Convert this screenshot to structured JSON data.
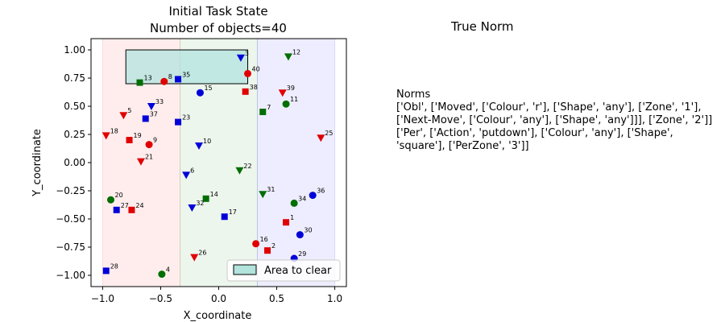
{
  "chart_data": {
    "type": "scatter",
    "title_line1": "Initial Task State",
    "title_line2": "Number of objects=40",
    "xlabel": "X_coordinate",
    "ylabel": "Y_coordinate",
    "xlim": [
      -1.1,
      1.1
    ],
    "ylim": [
      -1.1,
      1.1
    ],
    "xticks": [
      -1.0,
      -0.5,
      0.0,
      0.5,
      1.0
    ],
    "yticks": [
      -1.0,
      -0.75,
      -0.5,
      -0.25,
      0.0,
      0.25,
      0.5,
      0.75,
      1.0
    ],
    "xtick_labels": [
      "−1.0",
      "−0.5",
      "0.0",
      "0.5",
      "1.0"
    ],
    "ytick_labels": [
      "−1.00",
      "−0.75",
      "−0.50",
      "−0.25",
      "0.00",
      "0.25",
      "0.50",
      "0.75",
      "1.00"
    ],
    "zones": [
      {
        "x0": -1.0,
        "x1": -0.333,
        "color": "#ff0000"
      },
      {
        "x0": -0.333,
        "x1": 0.333,
        "color": "#008000"
      },
      {
        "x0": 0.333,
        "x1": 1.0,
        "color": "#0000ff"
      }
    ],
    "clear_area": {
      "x0": -0.8,
      "x1": 0.25,
      "y0": 0.7,
      "y1": 1.0,
      "color": "#b2e3dd"
    },
    "legend": {
      "label": "Area to clear",
      "loc": "lower right"
    },
    "colors": {
      "r": "#e00000",
      "g": "#006e00",
      "b": "#0000d8"
    },
    "points": [
      {
        "id": "1",
        "x": 0.58,
        "y": -0.53,
        "shape": "square",
        "color": "r"
      },
      {
        "id": "2",
        "x": 0.42,
        "y": -0.78,
        "shape": "square",
        "color": "r"
      },
      {
        "id": "3",
        "x": 0.19,
        "y": 0.93,
        "shape": "triangle",
        "color": "b"
      },
      {
        "id": "4",
        "x": -0.49,
        "y": -0.99,
        "shape": "circle",
        "color": "g"
      },
      {
        "id": "5",
        "x": -0.82,
        "y": 0.42,
        "shape": "triangle",
        "color": "r"
      },
      {
        "id": "6",
        "x": -0.28,
        "y": -0.11,
        "shape": "triangle",
        "color": "b"
      },
      {
        "id": "7",
        "x": 0.38,
        "y": 0.45,
        "shape": "square",
        "color": "g"
      },
      {
        "id": "8",
        "x": -0.47,
        "y": 0.72,
        "shape": "circle",
        "color": "r"
      },
      {
        "id": "9",
        "x": -0.6,
        "y": 0.16,
        "shape": "circle",
        "color": "r"
      },
      {
        "id": "10",
        "x": -0.17,
        "y": 0.15,
        "shape": "triangle",
        "color": "b"
      },
      {
        "id": "11",
        "x": 0.58,
        "y": 0.52,
        "shape": "circle",
        "color": "g"
      },
      {
        "id": "12",
        "x": 0.6,
        "y": 0.94,
        "shape": "triangle",
        "color": "g"
      },
      {
        "id": "13",
        "x": -0.68,
        "y": 0.71,
        "shape": "square",
        "color": "g"
      },
      {
        "id": "14",
        "x": -0.11,
        "y": -0.32,
        "shape": "square",
        "color": "g"
      },
      {
        "id": "15",
        "x": -0.16,
        "y": 0.62,
        "shape": "circle",
        "color": "b"
      },
      {
        "id": "16",
        "x": 0.32,
        "y": -0.72,
        "shape": "circle",
        "color": "r"
      },
      {
        "id": "17",
        "x": 0.05,
        "y": -0.48,
        "shape": "square",
        "color": "b"
      },
      {
        "id": "18",
        "x": -0.97,
        "y": 0.24,
        "shape": "triangle",
        "color": "r"
      },
      {
        "id": "19",
        "x": -0.77,
        "y": 0.2,
        "shape": "square",
        "color": "r"
      },
      {
        "id": "20",
        "x": -0.93,
        "y": -0.33,
        "shape": "circle",
        "color": "g"
      },
      {
        "id": "21",
        "x": -0.67,
        "y": 0.01,
        "shape": "triangle",
        "color": "r"
      },
      {
        "id": "22",
        "x": 0.18,
        "y": -0.07,
        "shape": "triangle",
        "color": "g"
      },
      {
        "id": "23",
        "x": -0.35,
        "y": 0.36,
        "shape": "square",
        "color": "b"
      },
      {
        "id": "24",
        "x": -0.75,
        "y": -0.42,
        "shape": "square",
        "color": "r"
      },
      {
        "id": "25",
        "x": 0.88,
        "y": 0.22,
        "shape": "triangle",
        "color": "r"
      },
      {
        "id": "26",
        "x": -0.21,
        "y": -0.84,
        "shape": "triangle",
        "color": "r"
      },
      {
        "id": "27",
        "x": -0.88,
        "y": -0.42,
        "shape": "square",
        "color": "b"
      },
      {
        "id": "28",
        "x": -0.97,
        "y": -0.96,
        "shape": "square",
        "color": "b"
      },
      {
        "id": "29",
        "x": 0.65,
        "y": -0.85,
        "shape": "circle",
        "color": "b"
      },
      {
        "id": "30",
        "x": 0.7,
        "y": -0.64,
        "shape": "circle",
        "color": "b"
      },
      {
        "id": "31",
        "x": 0.38,
        "y": -0.28,
        "shape": "triangle",
        "color": "g"
      },
      {
        "id": "32",
        "x": -0.23,
        "y": -0.4,
        "shape": "triangle",
        "color": "b"
      },
      {
        "id": "33",
        "x": -0.58,
        "y": 0.5,
        "shape": "triangle",
        "color": "b"
      },
      {
        "id": "34",
        "x": 0.65,
        "y": -0.36,
        "shape": "circle",
        "color": "g"
      },
      {
        "id": "35",
        "x": -0.35,
        "y": 0.74,
        "shape": "square",
        "color": "b"
      },
      {
        "id": "36",
        "x": 0.81,
        "y": -0.29,
        "shape": "circle",
        "color": "b"
      },
      {
        "id": "37",
        "x": -0.63,
        "y": 0.39,
        "shape": "square",
        "color": "b"
      },
      {
        "id": "38",
        "x": 0.23,
        "y": 0.63,
        "shape": "square",
        "color": "r"
      },
      {
        "id": "39",
        "x": 0.55,
        "y": 0.62,
        "shape": "triangle",
        "color": "r"
      },
      {
        "id": "40",
        "x": 0.25,
        "y": 0.79,
        "shape": "circle",
        "color": "r"
      }
    ]
  },
  "norms_panel": {
    "title": "True Norm",
    "heading": "Norms",
    "lines": [
      "['Obl', ['Moved', ['Colour', 'r'], ['Shape', 'any'], ['Zone', '1'], ['Next-Move', ['Colour', 'any'], ['Shape', 'any']]], ['Zone', '2']]",
      "['Per', ['Action', 'putdown'], ['Colour', 'any'], ['Shape', 'square'], ['PerZone', '3']]"
    ]
  }
}
